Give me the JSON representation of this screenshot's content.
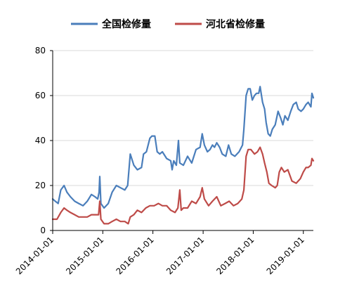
{
  "chart_data": {
    "type": "line",
    "title": "",
    "xlabel": "",
    "ylabel": "",
    "ylim": [
      0,
      80
    ],
    "yticks": [
      0,
      20,
      40,
      60,
      80
    ],
    "xticks": [
      "2014-01-01",
      "2015-01-01",
      "2016-01-01",
      "2017-01-01",
      "2018-01-01",
      "2019-01-01"
    ],
    "x_range": [
      "2014-01-01",
      "2019-03-15"
    ],
    "grid": "horizontal",
    "legend_position": "top",
    "series": [
      {
        "name": "全国检修量",
        "color": "#4a7ebb",
        "points": [
          [
            "2014-01-01",
            14
          ],
          [
            "2014-01-20",
            13
          ],
          [
            "2014-02-10",
            12
          ],
          [
            "2014-03-01",
            18
          ],
          [
            "2014-03-25",
            20
          ],
          [
            "2014-04-15",
            17
          ],
          [
            "2014-05-10",
            15
          ],
          [
            "2014-06-10",
            13
          ],
          [
            "2014-07-10",
            12
          ],
          [
            "2014-08-10",
            11
          ],
          [
            "2014-09-10",
            13
          ],
          [
            "2014-10-10",
            16
          ],
          [
            "2014-11-05",
            15
          ],
          [
            "2014-11-25",
            14
          ],
          [
            "2014-12-05",
            17
          ],
          [
            "2014-12-10",
            24
          ],
          [
            "2014-12-18",
            12
          ],
          [
            "2015-01-10",
            10
          ],
          [
            "2015-02-10",
            12
          ],
          [
            "2015-03-10",
            17
          ],
          [
            "2015-04-10",
            20
          ],
          [
            "2015-05-10",
            19
          ],
          [
            "2015-06-10",
            18
          ],
          [
            "2015-07-01",
            20
          ],
          [
            "2015-07-20",
            34
          ],
          [
            "2015-08-15",
            29
          ],
          [
            "2015-09-10",
            27
          ],
          [
            "2015-10-10",
            28
          ],
          [
            "2015-10-25",
            34
          ],
          [
            "2015-11-15",
            35
          ],
          [
            "2015-12-10",
            41
          ],
          [
            "2015-12-25",
            42
          ],
          [
            "2016-01-15",
            42
          ],
          [
            "2016-02-01",
            35
          ],
          [
            "2016-02-20",
            34
          ],
          [
            "2016-03-10",
            35
          ],
          [
            "2016-04-10",
            32
          ],
          [
            "2016-05-10",
            31
          ],
          [
            "2016-05-20",
            27
          ],
          [
            "2016-06-01",
            31
          ],
          [
            "2016-06-20",
            29
          ],
          [
            "2016-07-05",
            40
          ],
          [
            "2016-07-15",
            30
          ],
          [
            "2016-08-10",
            29
          ],
          [
            "2016-09-10",
            33
          ],
          [
            "2016-10-10",
            30
          ],
          [
            "2016-11-10",
            36
          ],
          [
            "2016-12-10",
            37
          ],
          [
            "2016-12-25",
            43
          ],
          [
            "2017-01-10",
            38
          ],
          [
            "2017-02-01",
            35
          ],
          [
            "2017-02-20",
            36
          ],
          [
            "2017-03-10",
            38
          ],
          [
            "2017-03-25",
            37
          ],
          [
            "2017-04-10",
            39
          ],
          [
            "2017-05-01",
            37
          ],
          [
            "2017-05-20",
            34
          ],
          [
            "2017-06-15",
            33
          ],
          [
            "2017-07-05",
            38
          ],
          [
            "2017-07-25",
            34
          ],
          [
            "2017-08-20",
            33
          ],
          [
            "2017-09-20",
            35
          ],
          [
            "2017-10-15",
            38
          ],
          [
            "2017-10-25",
            45
          ],
          [
            "2017-11-10",
            60
          ],
          [
            "2017-11-25",
            63
          ],
          [
            "2017-12-10",
            63
          ],
          [
            "2017-12-25",
            58
          ],
          [
            "2018-01-10",
            60
          ],
          [
            "2018-01-25",
            61
          ],
          [
            "2018-02-10",
            61
          ],
          [
            "2018-02-20",
            64
          ],
          [
            "2018-03-10",
            57
          ],
          [
            "2018-03-25",
            54
          ],
          [
            "2018-04-05",
            48
          ],
          [
            "2018-04-20",
            43
          ],
          [
            "2018-05-05",
            42
          ],
          [
            "2018-05-20",
            45
          ],
          [
            "2018-06-10",
            47
          ],
          [
            "2018-07-01",
            53
          ],
          [
            "2018-07-20",
            50
          ],
          [
            "2018-08-05",
            47
          ],
          [
            "2018-08-20",
            51
          ],
          [
            "2018-09-10",
            49
          ],
          [
            "2018-10-01",
            53
          ],
          [
            "2018-10-20",
            56
          ],
          [
            "2018-11-10",
            57
          ],
          [
            "2018-11-25",
            54
          ],
          [
            "2018-12-15",
            53
          ],
          [
            "2019-01-01",
            54
          ],
          [
            "2019-01-20",
            56
          ],
          [
            "2019-02-05",
            57
          ],
          [
            "2019-02-25",
            55
          ],
          [
            "2019-03-05",
            61
          ],
          [
            "2019-03-15",
            59
          ]
        ]
      },
      {
        "name": "河北省检修量",
        "color": "#be4b48",
        "points": [
          [
            "2014-01-01",
            5
          ],
          [
            "2014-02-01",
            5
          ],
          [
            "2014-03-01",
            8
          ],
          [
            "2014-03-25",
            10
          ],
          [
            "2014-04-15",
            9
          ],
          [
            "2014-05-10",
            8
          ],
          [
            "2014-06-10",
            7
          ],
          [
            "2014-07-10",
            6
          ],
          [
            "2014-08-10",
            6
          ],
          [
            "2014-09-10",
            6
          ],
          [
            "2014-10-10",
            7
          ],
          [
            "2014-11-10",
            7
          ],
          [
            "2014-12-01",
            7
          ],
          [
            "2014-12-10",
            13
          ],
          [
            "2014-12-18",
            5
          ],
          [
            "2015-01-10",
            3
          ],
          [
            "2015-02-10",
            3
          ],
          [
            "2015-03-10",
            4
          ],
          [
            "2015-04-10",
            5
          ],
          [
            "2015-05-10",
            4
          ],
          [
            "2015-06-10",
            4
          ],
          [
            "2015-07-05",
            3
          ],
          [
            "2015-07-20",
            6
          ],
          [
            "2015-08-15",
            7
          ],
          [
            "2015-09-10",
            9
          ],
          [
            "2015-10-10",
            8
          ],
          [
            "2015-11-10",
            10
          ],
          [
            "2015-12-10",
            11
          ],
          [
            "2016-01-10",
            11
          ],
          [
            "2016-02-10",
            12
          ],
          [
            "2016-03-10",
            11
          ],
          [
            "2016-04-10",
            11
          ],
          [
            "2016-05-10",
            9
          ],
          [
            "2016-06-10",
            8
          ],
          [
            "2016-07-01",
            10
          ],
          [
            "2016-07-15",
            18
          ],
          [
            "2016-07-25",
            9
          ],
          [
            "2016-08-10",
            10
          ],
          [
            "2016-09-10",
            10
          ],
          [
            "2016-10-10",
            13
          ],
          [
            "2016-11-10",
            12
          ],
          [
            "2016-12-10",
            15
          ],
          [
            "2016-12-25",
            19
          ],
          [
            "2017-01-10",
            14
          ],
          [
            "2017-02-10",
            11
          ],
          [
            "2017-03-10",
            13
          ],
          [
            "2017-04-10",
            15
          ],
          [
            "2017-05-10",
            11
          ],
          [
            "2017-06-10",
            12
          ],
          [
            "2017-07-10",
            13
          ],
          [
            "2017-08-10",
            11
          ],
          [
            "2017-09-10",
            12
          ],
          [
            "2017-10-10",
            14
          ],
          [
            "2017-10-25",
            18
          ],
          [
            "2017-11-10",
            33
          ],
          [
            "2017-11-25",
            36
          ],
          [
            "2017-12-15",
            36
          ],
          [
            "2018-01-10",
            34
          ],
          [
            "2018-02-01",
            35
          ],
          [
            "2018-02-20",
            37
          ],
          [
            "2018-03-10",
            34
          ],
          [
            "2018-03-25",
            30
          ],
          [
            "2018-04-10",
            26
          ],
          [
            "2018-04-25",
            21
          ],
          [
            "2018-05-15",
            20
          ],
          [
            "2018-06-10",
            19
          ],
          [
            "2018-06-25",
            20
          ],
          [
            "2018-07-10",
            26
          ],
          [
            "2018-07-25",
            28
          ],
          [
            "2018-08-15",
            26
          ],
          [
            "2018-09-10",
            27
          ],
          [
            "2018-10-10",
            22
          ],
          [
            "2018-11-10",
            21
          ],
          [
            "2018-12-10",
            23
          ],
          [
            "2019-01-01",
            26
          ],
          [
            "2019-01-20",
            28
          ],
          [
            "2019-02-05",
            28
          ],
          [
            "2019-02-25",
            29
          ],
          [
            "2019-03-05",
            32
          ],
          [
            "2019-03-15",
            31
          ]
        ]
      }
    ]
  }
}
